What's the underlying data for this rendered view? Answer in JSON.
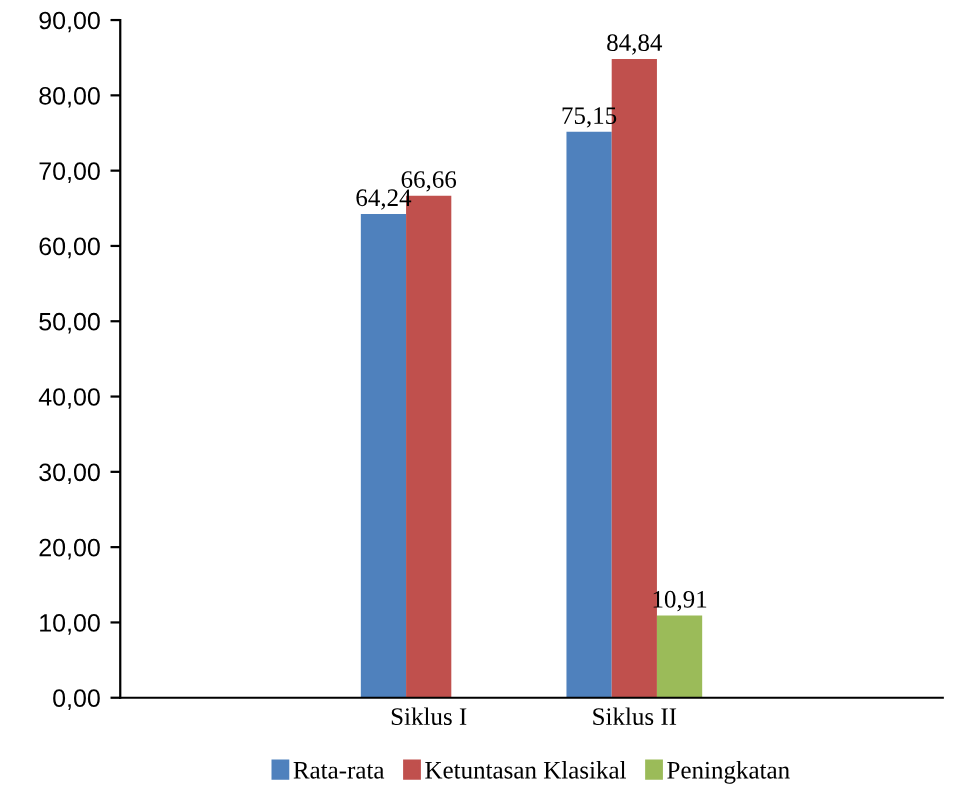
{
  "chart_data": {
    "type": "bar",
    "categories": [
      null,
      "Siklus I",
      "Siklus II",
      null
    ],
    "series": [
      {
        "name": "Rata-rata",
        "color": "#4f81bd",
        "values": [
          null,
          64.24,
          75.15,
          null
        ],
        "value_labels": [
          null,
          "64,24",
          "75,15",
          null
        ]
      },
      {
        "name": "Ketuntasan Klasikal",
        "color": "#c0504d",
        "values": [
          null,
          66.66,
          84.84,
          null
        ],
        "value_labels": [
          null,
          "66,66",
          "84,84",
          null
        ]
      },
      {
        "name": "Peningkatan",
        "color": "#9bbb59",
        "values": [
          null,
          null,
          10.91,
          null
        ],
        "value_labels": [
          null,
          null,
          "10,91",
          null
        ]
      }
    ],
    "ylim": [
      0,
      90
    ],
    "yticks": [
      {
        "value": 0,
        "label": "0,00"
      },
      {
        "value": 10,
        "label": "10,00"
      },
      {
        "value": 20,
        "label": "20,00"
      },
      {
        "value": 30,
        "label": "30,00"
      },
      {
        "value": 40,
        "label": "40,00"
      },
      {
        "value": 50,
        "label": "50,00"
      },
      {
        "value": 60,
        "label": "60,00"
      },
      {
        "value": 70,
        "label": "70,00"
      },
      {
        "value": 80,
        "label": "80,00"
      },
      {
        "value": 90,
        "label": "90,00"
      }
    ],
    "grid": false,
    "legend": "bottom"
  }
}
